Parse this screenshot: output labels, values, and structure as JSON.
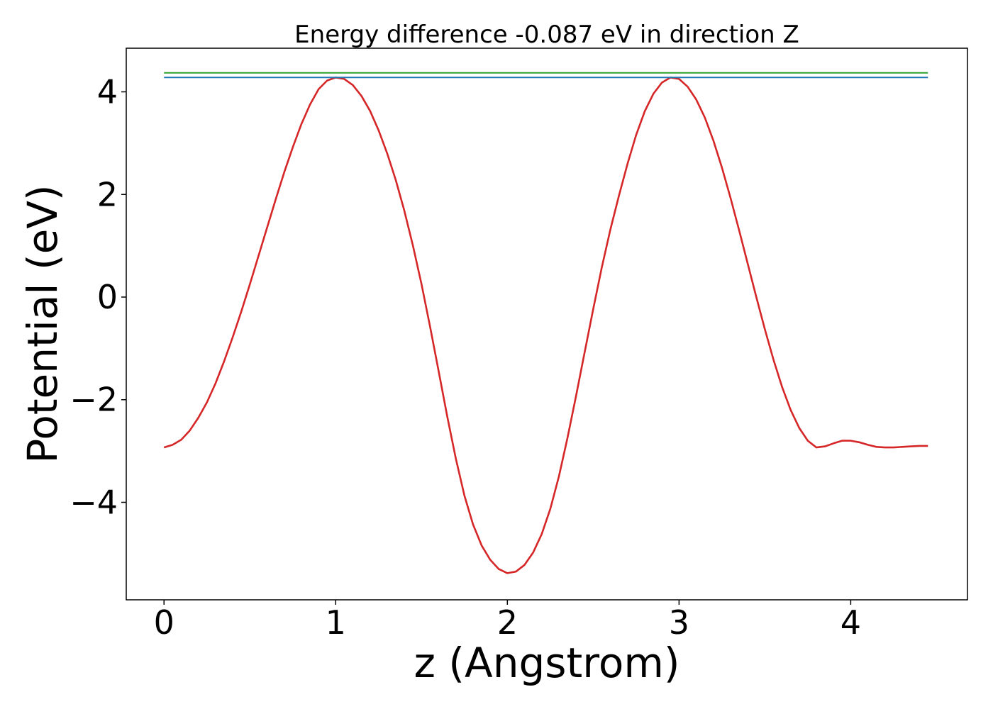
{
  "chart_data": {
    "type": "line",
    "title": "Energy difference -0.087 eV in direction Z",
    "xlabel": "z (Angstrom)",
    "ylabel": "Potential (eV)",
    "xlim": [
      -0.22,
      4.68
    ],
    "ylim": [
      -5.9,
      4.85
    ],
    "xticks": [
      0,
      1,
      2,
      3,
      4
    ],
    "xtick_labels": [
      "0",
      "1",
      "2",
      "3",
      "4"
    ],
    "yticks": [
      -4,
      -2,
      0,
      2,
      4
    ],
    "ytick_labels": [
      "−4",
      "−2",
      "0",
      "2",
      "4"
    ],
    "grid": false,
    "series": [
      {
        "color": "#d62728",
        "x": [
          0.0,
          0.05,
          0.1,
          0.15,
          0.2,
          0.25,
          0.3,
          0.35,
          0.4,
          0.45,
          0.5,
          0.55,
          0.6,
          0.65,
          0.7,
          0.75,
          0.8,
          0.85,
          0.9,
          0.95,
          1.0,
          1.05,
          1.1,
          1.15,
          1.2,
          1.25,
          1.3,
          1.35,
          1.4,
          1.45,
          1.5,
          1.55,
          1.6,
          1.65,
          1.7,
          1.75,
          1.8,
          1.85,
          1.9,
          1.95,
          2.0,
          2.05,
          2.1,
          2.15,
          2.2,
          2.25,
          2.3,
          2.35,
          2.4,
          2.45,
          2.5,
          2.55,
          2.6,
          2.65,
          2.7,
          2.75,
          2.8,
          2.85,
          2.9,
          2.95,
          3.0,
          3.05,
          3.1,
          3.15,
          3.2,
          3.25,
          3.3,
          3.35,
          3.4,
          3.45,
          3.5,
          3.55,
          3.6,
          3.65,
          3.7,
          3.75,
          3.8,
          3.85,
          3.9,
          3.95,
          4.0,
          4.05,
          4.1,
          4.15,
          4.2,
          4.25,
          4.3,
          4.35,
          4.4,
          4.45
        ],
        "values": [
          -2.93,
          -2.88,
          -2.78,
          -2.6,
          -2.35,
          -2.05,
          -1.68,
          -1.25,
          -0.78,
          -0.28,
          0.25,
          0.8,
          1.35,
          1.9,
          2.43,
          2.92,
          3.37,
          3.75,
          4.05,
          4.22,
          4.28,
          4.25,
          4.13,
          3.92,
          3.63,
          3.25,
          2.8,
          2.28,
          1.68,
          1.0,
          0.25,
          -0.58,
          -1.45,
          -2.33,
          -3.15,
          -3.87,
          -4.43,
          -4.84,
          -5.12,
          -5.3,
          -5.38,
          -5.35,
          -5.22,
          -4.98,
          -4.62,
          -4.13,
          -3.5,
          -2.75,
          -1.93,
          -1.08,
          -0.23,
          0.58,
          1.32,
          1.98,
          2.6,
          3.16,
          3.62,
          3.96,
          4.18,
          4.28,
          4.25,
          4.1,
          3.85,
          3.5,
          3.05,
          2.52,
          1.93,
          1.3,
          0.65,
          0.0,
          -0.63,
          -1.22,
          -1.75,
          -2.2,
          -2.55,
          -2.8,
          -2.93,
          -2.91,
          -2.85,
          -2.8,
          -2.8,
          -2.83,
          -2.88,
          -2.92,
          -2.93,
          -2.93,
          -2.92,
          -2.91,
          -2.9,
          -2.9
        ]
      },
      {
        "color": "#2ca02c",
        "x": [
          0.0,
          4.45
        ],
        "values": [
          4.37,
          4.37
        ]
      },
      {
        "color": "#1f77b4",
        "x": [
          0.0,
          4.45
        ],
        "values": [
          4.28,
          4.28
        ]
      }
    ]
  }
}
